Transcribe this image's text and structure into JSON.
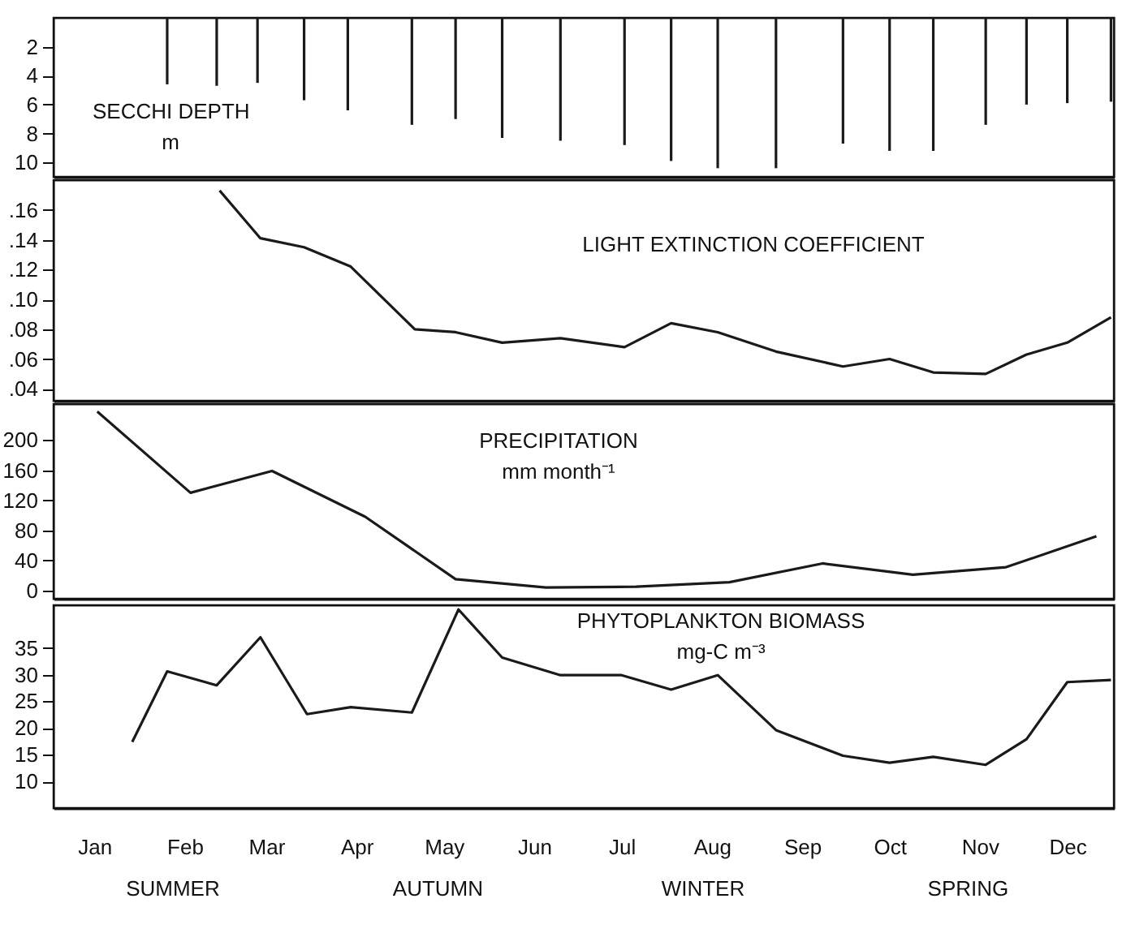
{
  "chart_data": [
    {
      "type": "bar",
      "title": "SECCHI DEPTH",
      "subtitle": "m",
      "color": "#1a1a1a",
      "tick_labels": "y",
      "grid": false,
      "xlim": [
        "--01-01",
        "--12-31"
      ],
      "ylim": [
        11,
        0
      ],
      "yticks": [
        2,
        4,
        6,
        8,
        10
      ],
      "x": [
        "--02-09",
        "--02-26",
        "--03-12",
        "--03-28",
        "--04-12",
        "--05-04",
        "--05-19",
        "--06-04",
        "--06-24",
        "--07-16",
        "--08-01",
        "--08-17",
        "--09-06",
        "--09-29",
        "--10-15",
        "--10-30",
        "--11-17",
        "--12-01",
        "--12-15",
        "--12-30"
      ],
      "values": [
        4.6,
        4.7,
        4.5,
        5.7,
        6.4,
        7.4,
        7.0,
        8.3,
        8.5,
        8.8,
        9.9,
        10.4,
        10.4,
        8.7,
        9.2,
        9.2,
        7.4,
        6.0,
        5.9,
        5.8
      ]
    },
    {
      "type": "line",
      "title": "LIGHT EXTINCTION COEFFICIENT",
      "color": "#1a1a1a",
      "tick_labels": "y",
      "grid": false,
      "xlim": [
        "--01-01",
        "--12-31"
      ],
      "ylim": [
        0.032,
        0.18
      ],
      "yticks": [
        {
          "value": 0.04,
          "label": ".04"
        },
        {
          "value": 0.06,
          "label": ".06"
        },
        {
          "value": 0.08,
          "label": ".08"
        },
        {
          "value": 0.1,
          "label": ".10"
        },
        {
          "value": 0.12,
          "label": ".12"
        },
        {
          "value": 0.14,
          "label": ".14"
        },
        {
          "value": 0.16,
          "label": ".16"
        }
      ],
      "x": [
        "--02-27",
        "--03-13",
        "--03-28",
        "--04-13",
        "--05-05",
        "--05-19",
        "--06-04",
        "--06-24",
        "--07-16",
        "--08-01",
        "--08-17",
        "--09-06",
        "--09-29",
        "--10-15",
        "--10-30",
        "--11-17",
        "--12-01",
        "--12-15",
        "--12-30"
      ],
      "values": [
        0.173,
        0.141,
        0.135,
        0.122,
        0.08,
        0.078,
        0.071,
        0.074,
        0.068,
        0.084,
        0.078,
        0.065,
        0.055,
        0.06,
        0.051,
        0.05,
        0.063,
        0.071,
        0.088
      ]
    },
    {
      "type": "line",
      "title": "PRECIPITATION",
      "subtitle": "mm month⁻¹",
      "color": "#1a1a1a",
      "tick_labels": "y",
      "grid": false,
      "xlim": [
        "--01-01",
        "--12-31"
      ],
      "ylim": [
        -11,
        248
      ],
      "yticks": [
        0,
        40,
        80,
        120,
        160,
        200
      ],
      "x": [
        "--01-16",
        "--02-17",
        "--03-17",
        "--04-18",
        "--05-19",
        "--06-19",
        "--07-20",
        "--08-21",
        "--09-22",
        "--10-23",
        "--11-24",
        "--12-25"
      ],
      "values": [
        238,
        130,
        159,
        98,
        15,
        4,
        5,
        11,
        36,
        21,
        31,
        72
      ]
    },
    {
      "type": "line",
      "title": "PHYTOPLANKTON BIOMASS",
      "subtitle": "mg-C m⁻³",
      "color": "#1a1a1a",
      "grid": false,
      "xlim": [
        "--01-01",
        "--12-31"
      ],
      "ylim": [
        5,
        43
      ],
      "yticks": [
        10,
        15,
        20,
        25,
        30,
        35
      ],
      "xticks": [
        {
          "value": "--01-15",
          "label": "Jan"
        },
        {
          "value": "--02-15",
          "label": "Feb"
        },
        {
          "value": "--03-15",
          "label": "Mar"
        },
        {
          "value": "--04-15",
          "label": "Apr"
        },
        {
          "value": "--05-15",
          "label": "May"
        },
        {
          "value": "--06-15",
          "label": "Jun"
        },
        {
          "value": "--07-15",
          "label": "Jul"
        },
        {
          "value": "--08-15",
          "label": "Aug"
        },
        {
          "value": "--09-15",
          "label": "Sep"
        },
        {
          "value": "--10-15",
          "label": "Oct"
        },
        {
          "value": "--11-15",
          "label": "Nov"
        },
        {
          "value": "--12-15",
          "label": "Dec"
        }
      ],
      "annotations": [
        "SUMMER",
        "AUTUMN",
        "WINTER",
        "SPRING"
      ],
      "x": [
        "--01-28",
        "--02-09",
        "--02-26",
        "--03-13",
        "--03-29",
        "--04-13",
        "--05-04",
        "--05-20",
        "--06-04",
        "--06-24",
        "--07-15",
        "--08-01",
        "--08-17",
        "--09-06",
        "--09-29",
        "--10-15",
        "--10-30",
        "--11-17",
        "--12-01",
        "--12-15",
        "--12-30"
      ],
      "values": [
        17.4,
        30.6,
        28.0,
        37.0,
        22.6,
        23.9,
        22.9,
        42.2,
        33.2,
        29.9,
        29.9,
        27.2,
        29.9,
        19.6,
        14.8,
        13.5,
        14.6,
        13.1,
        17.9,
        28.6,
        29.0
      ]
    }
  ]
}
